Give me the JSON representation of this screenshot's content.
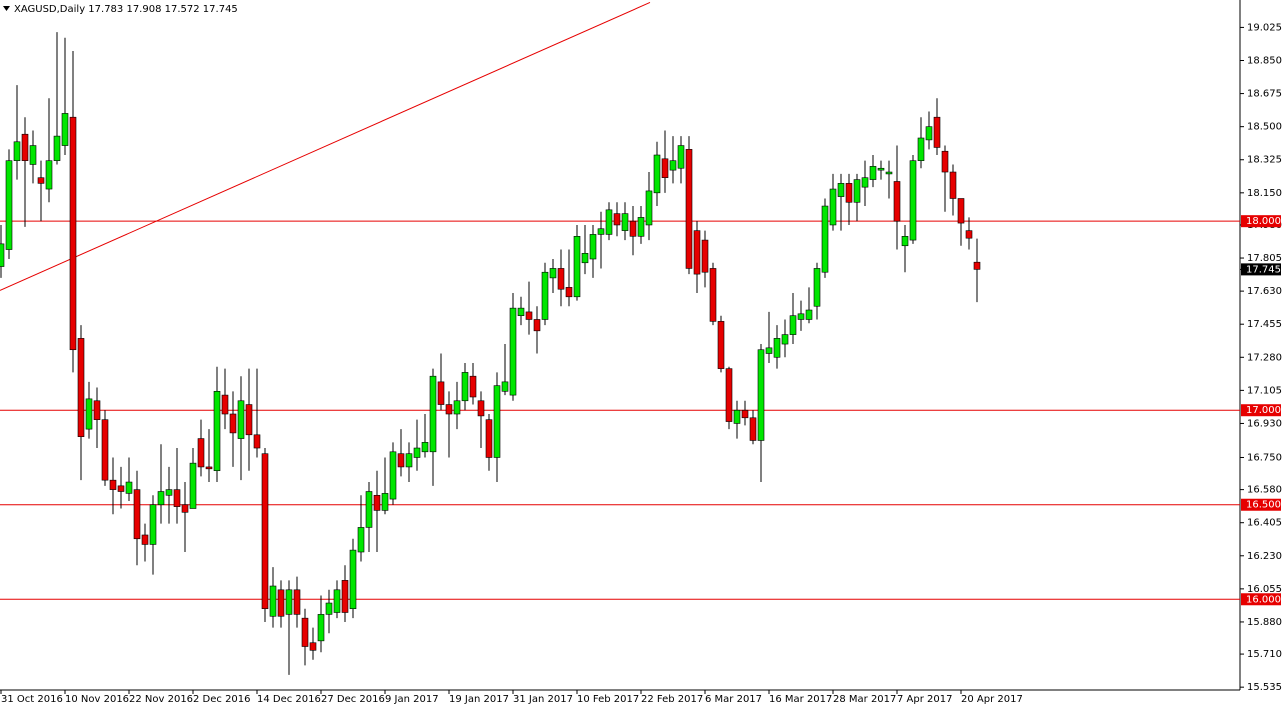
{
  "chart_data": {
    "type": "candlestick",
    "title": "XAGUSD,Daily  17.783 17.908 17.572 17.745",
    "categories": [
      "31 Oct 2016",
      null,
      null,
      null,
      null,
      null,
      null,
      null,
      "10 Nov 2016",
      null,
      null,
      null,
      null,
      null,
      null,
      null,
      "22 Nov 2016",
      null,
      null,
      null,
      null,
      null,
      null,
      null,
      "2 Dec 2016",
      null,
      null,
      null,
      null,
      null,
      null,
      null,
      "14 Dec 2016",
      null,
      null,
      null,
      null,
      null,
      null,
      null,
      "27 Dec 2016",
      null,
      null,
      null,
      null,
      null,
      null,
      null,
      "9 Jan 2017",
      null,
      null,
      null,
      null,
      null,
      null,
      null,
      "19 Jan 2017",
      null,
      null,
      null,
      null,
      null,
      null,
      null,
      "31 Jan 2017",
      null,
      null,
      null,
      null,
      null,
      null,
      null,
      "10 Feb 2017",
      null,
      null,
      null,
      null,
      null,
      null,
      null,
      "22 Feb 2017",
      null,
      null,
      null,
      null,
      null,
      null,
      null,
      "6 Mar 2017",
      null,
      null,
      null,
      null,
      null,
      null,
      null,
      "16 Mar 2017",
      null,
      null,
      null,
      null,
      null,
      null,
      null,
      "28 Mar 2017",
      null,
      null,
      null,
      null,
      null,
      null,
      null,
      "7 Apr 2017",
      null,
      null,
      null,
      null,
      null,
      null,
      null,
      "20 Apr 2017",
      null,
      null
    ],
    "open": [
      17.76,
      17.85,
      18.32,
      18.46,
      18.3,
      18.23,
      18.17,
      18.32,
      18.4,
      18.55,
      17.38,
      16.9,
      17.05,
      16.95,
      16.63,
      16.6,
      16.56,
      16.58,
      16.34,
      16.29,
      16.5,
      16.55,
      16.58,
      16.5,
      16.48,
      16.85,
      16.7,
      16.68,
      17.08,
      16.98,
      16.85,
      17.03,
      16.87,
      16.77,
      15.91,
      16.05,
      15.92,
      16.05,
      15.9,
      15.77,
      15.78,
      15.92,
      15.93,
      16.1,
      15.95,
      16.25,
      16.38,
      16.55,
      16.47,
      16.53,
      16.77,
      16.7,
      16.75,
      16.78,
      16.78,
      17.15,
      17.03,
      16.98,
      17.05,
      17.18,
      17.05,
      16.95,
      16.75,
      17.1,
      17.08,
      17.5,
      17.52,
      17.48,
      17.48,
      17.7,
      17.75,
      17.65,
      17.6,
      17.78,
      17.8,
      17.93,
      17.93,
      18.04,
      17.95,
      18.0,
      17.92,
      17.98,
      18.15,
      18.33,
      18.27,
      18.28,
      18.38,
      17.95,
      17.9,
      17.75,
      17.47,
      17.22,
      16.93,
      17.0,
      16.96,
      16.84,
      17.3,
      17.28,
      17.35,
      17.4,
      17.48,
      17.48,
      17.55,
      17.73,
      17.98,
      18.13,
      18.2,
      18.1,
      18.18,
      18.22,
      18.27,
      18.25,
      18.21,
      17.87,
      17.9,
      18.32,
      18.43,
      18.55,
      18.37,
      18.26,
      18.12,
      17.95,
      17.783
    ],
    "high": [
      17.98,
      18.38,
      18.72,
      18.55,
      18.48,
      18.32,
      18.65,
      19.0,
      18.97,
      18.9,
      17.45,
      17.15,
      17.12,
      17.0,
      16.75,
      16.7,
      16.75,
      16.68,
      16.4,
      16.55,
      16.82,
      16.7,
      16.8,
      16.62,
      16.8,
      16.95,
      16.9,
      17.23,
      17.22,
      17.1,
      17.18,
      17.22,
      17.22,
      16.8,
      16.17,
      16.1,
      16.1,
      16.12,
      15.95,
      15.85,
      16.02,
      16.05,
      16.1,
      16.18,
      16.32,
      16.55,
      16.62,
      16.68,
      16.75,
      16.83,
      16.9,
      16.83,
      16.95,
      16.98,
      17.22,
      17.3,
      17.1,
      17.15,
      17.25,
      17.25,
      17.1,
      16.98,
      17.2,
      17.35,
      17.62,
      17.6,
      17.68,
      17.55,
      17.78,
      17.8,
      17.85,
      17.85,
      17.98,
      17.98,
      17.98,
      18.05,
      18.1,
      18.1,
      18.1,
      18.08,
      18.08,
      18.26,
      18.42,
      18.48,
      18.45,
      18.45,
      18.45,
      18.0,
      17.95,
      17.78,
      17.5,
      17.23,
      17.05,
      17.05,
      17.0,
      17.35,
      17.52,
      17.45,
      17.48,
      17.62,
      17.58,
      17.65,
      17.78,
      18.12,
      18.25,
      18.25,
      18.25,
      18.25,
      18.32,
      18.35,
      18.32,
      18.32,
      18.4,
      17.98,
      18.35,
      18.55,
      18.58,
      18.65,
      18.4,
      18.3,
      18.12,
      18.02,
      17.908
    ],
    "low": [
      17.7,
      17.8,
      18.22,
      17.97,
      18.2,
      18.0,
      18.1,
      18.3,
      18.35,
      17.2,
      16.63,
      16.85,
      16.8,
      16.6,
      16.45,
      16.48,
      16.52,
      16.18,
      16.2,
      16.13,
      16.4,
      16.4,
      16.4,
      16.25,
      16.48,
      16.65,
      16.62,
      16.62,
      16.9,
      16.7,
      16.63,
      16.68,
      16.75,
      15.88,
      15.85,
      15.85,
      15.6,
      15.85,
      15.65,
      15.68,
      15.72,
      15.82,
      15.9,
      15.88,
      15.9,
      16.2,
      16.25,
      16.25,
      16.45,
      16.5,
      16.65,
      16.62,
      16.68,
      16.75,
      16.6,
      17.0,
      16.75,
      16.9,
      17.0,
      17.03,
      16.8,
      16.68,
      16.62,
      17.08,
      17.05,
      17.45,
      17.4,
      17.3,
      17.45,
      17.62,
      17.55,
      17.55,
      17.58,
      17.72,
      17.7,
      17.75,
      17.9,
      17.92,
      17.9,
      17.82,
      17.88,
      17.9,
      18.08,
      18.15,
      18.2,
      18.2,
      17.72,
      17.62,
      17.65,
      17.45,
      17.2,
      16.9,
      16.85,
      16.92,
      16.82,
      16.62,
      17.25,
      17.22,
      17.28,
      17.35,
      17.42,
      17.46,
      17.48,
      17.7,
      17.95,
      17.95,
      17.98,
      18.0,
      18.08,
      18.18,
      18.22,
      18.12,
      17.85,
      17.73,
      17.88,
      18.28,
      18.38,
      18.35,
      18.05,
      18.03,
      17.87,
      17.85,
      17.572
    ],
    "close": [
      17.88,
      18.32,
      18.42,
      18.32,
      18.4,
      18.2,
      18.32,
      18.45,
      18.57,
      17.32,
      16.86,
      17.06,
      16.95,
      16.63,
      16.58,
      16.57,
      16.62,
      16.32,
      16.29,
      16.5,
      16.57,
      16.58,
      16.49,
      16.46,
      16.72,
      16.7,
      16.69,
      17.1,
      16.98,
      16.88,
      17.05,
      16.87,
      16.8,
      15.95,
      16.07,
      15.91,
      16.05,
      15.92,
      15.75,
      15.73,
      15.92,
      15.98,
      16.05,
      15.93,
      16.26,
      16.38,
      16.57,
      16.47,
      16.56,
      16.78,
      16.7,
      16.77,
      16.8,
      16.83,
      17.18,
      17.03,
      16.98,
      17.05,
      17.2,
      17.07,
      16.97,
      16.75,
      17.13,
      17.15,
      17.54,
      17.54,
      17.48,
      17.42,
      17.73,
      17.75,
      17.64,
      17.6,
      17.92,
      17.83,
      17.93,
      17.96,
      18.06,
      17.98,
      18.04,
      17.92,
      18.02,
      18.16,
      18.35,
      18.23,
      18.32,
      18.4,
      17.75,
      17.72,
      17.73,
      17.47,
      17.22,
      16.94,
      17.0,
      16.96,
      16.84,
      17.32,
      17.33,
      17.38,
      17.4,
      17.5,
      17.51,
      17.53,
      17.75,
      18.08,
      18.17,
      18.2,
      18.1,
      18.22,
      18.23,
      18.29,
      18.28,
      18.26,
      18.0,
      17.92,
      18.32,
      18.44,
      18.5,
      18.39,
      18.26,
      18.12,
      17.99,
      17.91,
      17.745
    ],
    "up_color": "#00e600",
    "down_color": "#e60000",
    "ylim": [
      15.52,
      19.17
    ],
    "yticks": [
      15.535,
      {
        "value": 15.71,
        "label": "15.710"
      },
      {
        "value": 15.88,
        "label": "15.880"
      },
      16.055,
      {
        "value": 16.23,
        "label": "16.230"
      },
      16.405,
      {
        "value": 16.58,
        "label": "16.580"
      },
      {
        "value": 16.75,
        "label": "16.750"
      },
      {
        "value": 16.93,
        "label": "16.930"
      },
      17.105,
      {
        "value": 17.28,
        "label": "17.280"
      },
      17.455,
      {
        "value": 17.63,
        "label": "17.630"
      },
      17.805,
      {
        "value": 17.98,
        "label": "17.980"
      },
      {
        "value": 18.15,
        "label": "18.150"
      },
      18.325,
      {
        "value": 18.5,
        "label": "18.500"
      },
      18.675,
      {
        "value": 18.85,
        "label": "18.850"
      },
      19.025
    ],
    "levels": [
      {
        "value": 18,
        "label": "18.000"
      },
      {
        "value": 17,
        "label": "17.000"
      },
      {
        "value": 16.5,
        "label": "16.500"
      },
      {
        "value": 16,
        "label": "16.000"
      }
    ],
    "level_color": "#e60000",
    "last_price": {
      "value": 17.745,
      "label": "17.745"
    },
    "trendline": {
      "start": 17.634,
      "end": 19.157
    }
  }
}
